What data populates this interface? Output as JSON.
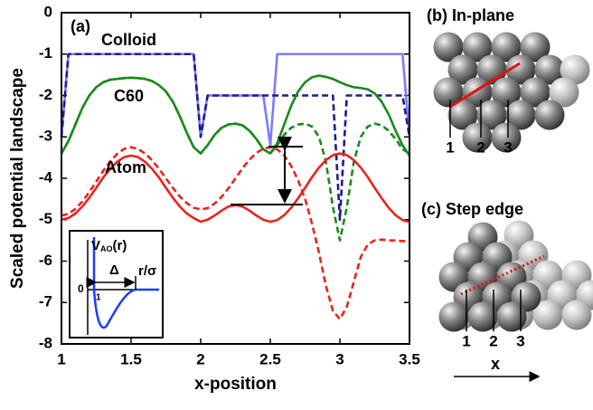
{
  "chart_data": {
    "type": "line",
    "panel_label": "(a)",
    "xlabel": "x-position",
    "ylabel": "Scaled potential landscape",
    "xlim": [
      1,
      3.5
    ],
    "xticks": [
      1,
      1.5,
      2,
      2.5,
      3,
      3.5
    ],
    "ylim": [
      -8,
      0
    ],
    "yticks": [
      0,
      -1,
      -2,
      -3,
      -4,
      -5,
      -6,
      -7,
      -8
    ],
    "annotations": [
      "Colloid",
      "C60",
      "Atom"
    ],
    "x": [
      1,
      1.05,
      1.1,
      1.15,
      1.2,
      1.25,
      1.3,
      1.35,
      1.4,
      1.45,
      1.5,
      1.55,
      1.6,
      1.65,
      1.7,
      1.75,
      1.8,
      1.85,
      1.9,
      1.95,
      2,
      2.05,
      2.1,
      2.15,
      2.2,
      2.25,
      2.3,
      2.35,
      2.4,
      2.45,
      2.5,
      2.55,
      2.6,
      2.65,
      2.7,
      2.75,
      2.8,
      2.85,
      2.9,
      2.95,
      3,
      3.05,
      3.1,
      3.15,
      3.2,
      3.25,
      3.3,
      3.35,
      3.4,
      3.45,
      3.5
    ],
    "series": [
      {
        "color": "#7b7bff",
        "dash": false,
        "values": [
          -3,
          -1,
          -1,
          -1,
          -1,
          -1,
          -1,
          -1,
          -1,
          -1,
          -1,
          -1,
          -1,
          -1,
          -1,
          -1,
          -1,
          -1,
          -1,
          -1,
          -3,
          -2,
          -2,
          -2,
          -2,
          -2,
          -2,
          -2,
          -2,
          -2,
          -3.2,
          -1,
          -1,
          -1,
          -1,
          -1,
          -1,
          -1,
          -1,
          -1,
          -1,
          -1,
          -1,
          -1,
          -1,
          -1,
          -1,
          -1,
          -1,
          -1,
          -3
        ]
      },
      {
        "color": "#1c1c8c",
        "dash": true,
        "values": [
          -3,
          -1,
          -1,
          -1,
          -1,
          -1,
          -1,
          -1,
          -1,
          -1,
          -1,
          -1,
          -1,
          -1,
          -1,
          -1,
          -1,
          -1,
          -1,
          -1,
          -3,
          -2,
          -2,
          -2,
          -2,
          -2,
          -2,
          -2,
          -2,
          -2,
          -2,
          -2,
          -2,
          -2,
          -2,
          -2,
          -2,
          -2,
          -2,
          -2,
          -5,
          -2,
          -2,
          -2,
          -2,
          -2,
          -2,
          -2,
          -2,
          -2,
          -3
        ]
      },
      {
        "color": "#1a8a1a",
        "dash": false,
        "values": [
          -3.4,
          -3.1,
          -2.7,
          -2.3,
          -2,
          -1.8,
          -1.68,
          -1.62,
          -1.6,
          -1.58,
          -1.57,
          -1.58,
          -1.6,
          -1.65,
          -1.75,
          -1.9,
          -2.15,
          -2.5,
          -2.9,
          -3.25,
          -3.4,
          -3.2,
          -2.95,
          -2.78,
          -2.7,
          -2.68,
          -2.72,
          -2.85,
          -3.05,
          -3.3,
          -3.4,
          -3.15,
          -2.7,
          -2.25,
          -1.9,
          -1.68,
          -1.56,
          -1.52,
          -1.55,
          -1.6,
          -1.68,
          -1.75,
          -1.8,
          -1.82,
          -1.85,
          -1.95,
          -2.15,
          -2.45,
          -2.85,
          -3.2,
          -3.45
        ]
      },
      {
        "color": "#1a8a1a",
        "dash": true,
        "values": [
          -3.4,
          -3.1,
          -2.7,
          -2.3,
          -2,
          -1.8,
          -1.68,
          -1.62,
          -1.6,
          -1.58,
          -1.57,
          -1.58,
          -1.6,
          -1.65,
          -1.75,
          -1.9,
          -2.15,
          -2.5,
          -2.9,
          -3.25,
          -3.4,
          -3.2,
          -2.95,
          -2.78,
          -2.7,
          -2.68,
          -2.72,
          -2.85,
          -3.05,
          -3.3,
          -3.4,
          -3.2,
          -2.95,
          -2.78,
          -2.7,
          -2.68,
          -2.75,
          -3,
          -3.6,
          -4.7,
          -5.5,
          -4.7,
          -3.6,
          -3,
          -2.75,
          -2.68,
          -2.72,
          -2.85,
          -3.05,
          -3.3,
          -3.4
        ]
      },
      {
        "color": "#e8241c",
        "dash": false,
        "values": [
          -5,
          -4.96,
          -4.85,
          -4.68,
          -4.47,
          -4.23,
          -3.98,
          -3.77,
          -3.6,
          -3.49,
          -3.45,
          -3.49,
          -3.6,
          -3.77,
          -3.98,
          -4.23,
          -4.47,
          -4.68,
          -4.85,
          -4.96,
          -5.05,
          -5,
          -4.9,
          -4.78,
          -4.68,
          -4.65,
          -4.68,
          -4.78,
          -4.9,
          -5,
          -5.05,
          -5.01,
          -4.89,
          -4.71,
          -4.48,
          -4.23,
          -3.97,
          -3.74,
          -3.56,
          -3.44,
          -3.4,
          -3.44,
          -3.56,
          -3.74,
          -3.97,
          -4.23,
          -4.48,
          -4.71,
          -4.89,
          -5.01,
          -5.05
        ]
      },
      {
        "color": "#e8241c",
        "dash": true,
        "values": [
          -4.9,
          -4.86,
          -4.74,
          -4.56,
          -4.33,
          -4.08,
          -3.82,
          -3.59,
          -3.41,
          -3.29,
          -3.25,
          -3.29,
          -3.4,
          -3.56,
          -3.77,
          -4,
          -4.23,
          -4.44,
          -4.6,
          -4.71,
          -4.75,
          -4.72,
          -4.61,
          -4.45,
          -4.24,
          -4,
          -3.76,
          -3.55,
          -3.39,
          -3.28,
          -3.25,
          -3.3,
          -3.45,
          -3.7,
          -4.05,
          -4.5,
          -5.1,
          -5.8,
          -6.6,
          -7.2,
          -7.4,
          -7.1,
          -6.5,
          -5.9,
          -5.6,
          -5.5,
          -5.48,
          -5.5,
          -5.5,
          -5.52,
          -5.5
        ]
      }
    ],
    "inset": {
      "v": "V",
      "sub": "AO",
      "arg": "(r)",
      "zero": "0",
      "one": "1",
      "delta": "Δ",
      "xlabel": "r/σ"
    }
  },
  "panels": [
    {
      "label": "(b) In-plane",
      "markers": [
        "1",
        "2",
        "3"
      ]
    },
    {
      "label": "(c) Step edge",
      "markers": [
        "1",
        "2",
        "3"
      ]
    }
  ],
  "direction_label": "x"
}
